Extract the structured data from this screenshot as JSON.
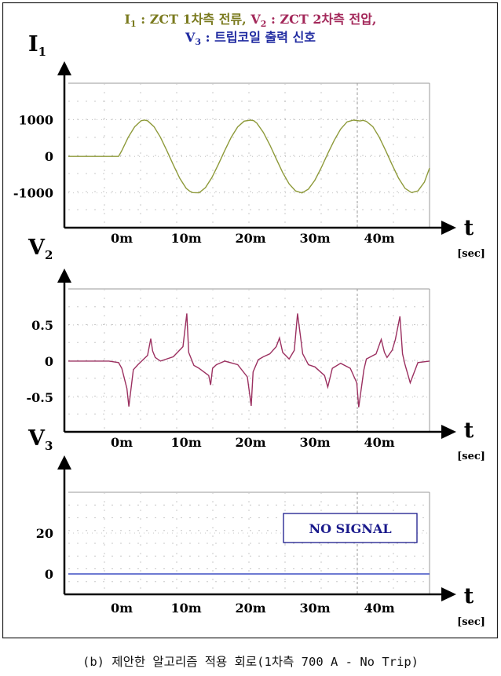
{
  "title": {
    "line1": [
      {
        "sym": "I",
        "sub": "1",
        "text": " : ZCT 1차측 전류",
        "color": "#7a7a1e"
      },
      {
        "sep": ", "
      },
      {
        "sym": "V",
        "sub": "2",
        "text": " : ZCT 2차측 전압,",
        "color": "#a3285a"
      }
    ],
    "line2": [
      {
        "sym": "V",
        "sub": "3",
        "text": " : 트립코일 출력 신호",
        "color": "#1f2aa0"
      }
    ]
  },
  "caption": "(b) 제안한 알고리즘 적용 회로(1차측 700 A - No Trip)",
  "colors": {
    "i1": "#8e9a3a",
    "v2": "#9b3060",
    "v3": "#3e4fc4",
    "note_border": "#1a1a8c"
  },
  "chart_data": [
    {
      "type": "line",
      "ylabel": "I",
      "ylabel_sub": "1",
      "xlabel": "t",
      "x_unit": "[sec]",
      "x_ticks": [
        "0m",
        "10m",
        "20m",
        "30m",
        "40m"
      ],
      "x_tick_values": [
        0,
        0.01,
        0.02,
        0.03,
        0.04
      ],
      "y_ticks": [
        "1000",
        "0",
        "-1000"
      ],
      "y_tick_values": [
        1000,
        0,
        -1000
      ],
      "xlim": [
        -0.0083,
        0.0478
      ],
      "ylim": [
        -1950,
        2000
      ],
      "series": [
        {
          "color_key": "i1",
          "x": [
            -0.0083,
            -0.0005,
            0.0,
            0.001,
            0.002,
            0.003,
            0.0035,
            0.004,
            0.005,
            0.006,
            0.007,
            0.008,
            0.009,
            0.01,
            0.0105,
            0.011,
            0.012,
            0.013,
            0.014,
            0.015,
            0.016,
            0.017,
            0.018,
            0.019,
            0.02,
            0.0205,
            0.021,
            0.022,
            0.023,
            0.024,
            0.025,
            0.026,
            0.027,
            0.028,
            0.029,
            0.03,
            0.031,
            0.032,
            0.033,
            0.034,
            0.035,
            0.036,
            0.037,
            0.0375,
            0.038,
            0.039,
            0.04,
            0.041,
            0.042,
            0.043,
            0.044,
            0.045,
            0.046,
            0.047,
            0.0478
          ],
          "y": [
            0,
            0,
            155,
            522,
            809,
            973,
            990,
            974,
            812,
            524,
            156,
            -230,
            -597,
            -875,
            -945,
            -990,
            -996,
            -853,
            -576,
            -217,
            162,
            525,
            806,
            964,
            990,
            976,
            906,
            655,
            315,
            -68,
            -443,
            -752,
            -945,
            -1000,
            -893,
            -652,
            -307,
            77,
            438,
            746,
            944,
            990,
            968,
            985,
            956,
            812,
            524,
            156,
            -230,
            -597,
            -875,
            -990,
            -945,
            -707,
            -320
          ]
        }
      ]
    },
    {
      "type": "line",
      "ylabel": "V",
      "ylabel_sub": "2",
      "xlabel": "t",
      "x_unit": "[sec]",
      "x_ticks": [
        "0m",
        "10m",
        "20m",
        "30m",
        "40m"
      ],
      "x_tick_values": [
        0,
        0.01,
        0.02,
        0.03,
        0.04
      ],
      "y_ticks": [
        "0.5",
        "0",
        "-0.5"
      ],
      "y_tick_values": [
        0.5,
        0,
        -0.5
      ],
      "xlim": [
        -0.0083,
        0.0478
      ],
      "ylim": [
        -0.98,
        1.0
      ],
      "series": [
        {
          "color_key": "v2",
          "x": [
            -0.0083,
            -0.002,
            -0.0005,
            0.0,
            0.0008,
            0.0011,
            0.0018,
            0.0025,
            0.004,
            0.0045,
            0.0048,
            0.0052,
            0.006,
            0.008,
            0.0095,
            0.0101,
            0.0104,
            0.0112,
            0.012,
            0.0135,
            0.0138,
            0.0141,
            0.0147,
            0.016,
            0.018,
            0.0195,
            0.0201,
            0.0204,
            0.0212,
            0.022,
            0.023,
            0.024,
            0.0245,
            0.025,
            0.026,
            0.0268,
            0.0273,
            0.0281,
            0.029,
            0.03,
            0.0315,
            0.032,
            0.0327,
            0.034,
            0.0355,
            0.0365,
            0.0368,
            0.0376,
            0.038,
            0.0395,
            0.0403,
            0.0408,
            0.0412,
            0.042,
            0.0425,
            0.0432,
            0.0436,
            0.044,
            0.0448,
            0.046,
            0.0478
          ],
          "y": [
            0,
            0,
            -0.02,
            -0.1,
            -0.38,
            -0.63,
            -0.12,
            -0.05,
            0.08,
            0.31,
            0.14,
            0.05,
            0.0,
            0.06,
            0.2,
            0.66,
            0.12,
            -0.06,
            -0.1,
            -0.2,
            -0.33,
            -0.1,
            -0.05,
            0,
            -0.05,
            -0.22,
            -0.62,
            -0.15,
            0.02,
            0.06,
            0.1,
            0.2,
            0.32,
            0.12,
            0.03,
            0.15,
            0.66,
            0.1,
            -0.05,
            -0.08,
            -0.2,
            -0.36,
            -0.1,
            -0.03,
            -0.1,
            -0.3,
            -0.64,
            -0.12,
            0.03,
            0.1,
            0.3,
            0.12,
            0.05,
            0.15,
            0.3,
            0.62,
            0.1,
            -0.05,
            -0.3,
            -0.02,
            0
          ]
        }
      ]
    },
    {
      "type": "line",
      "ylabel": "V",
      "ylabel_sub": "3",
      "xlabel": "t",
      "x_unit": "[sec]",
      "x_ticks": [
        "0m",
        "10m",
        "20m",
        "30m",
        "40m"
      ],
      "x_tick_values": [
        0,
        0.01,
        0.02,
        0.03,
        0.04
      ],
      "y_ticks": [
        "20",
        "0"
      ],
      "y_tick_values": [
        20,
        0
      ],
      "xlim": [
        -0.0083,
        0.0478
      ],
      "ylim": [
        -10,
        40
      ],
      "annotation": "NO SIGNAL",
      "series": [
        {
          "color_key": "v3",
          "x": [
            -0.0083,
            0.0478
          ],
          "y": [
            0,
            0
          ]
        }
      ]
    }
  ]
}
